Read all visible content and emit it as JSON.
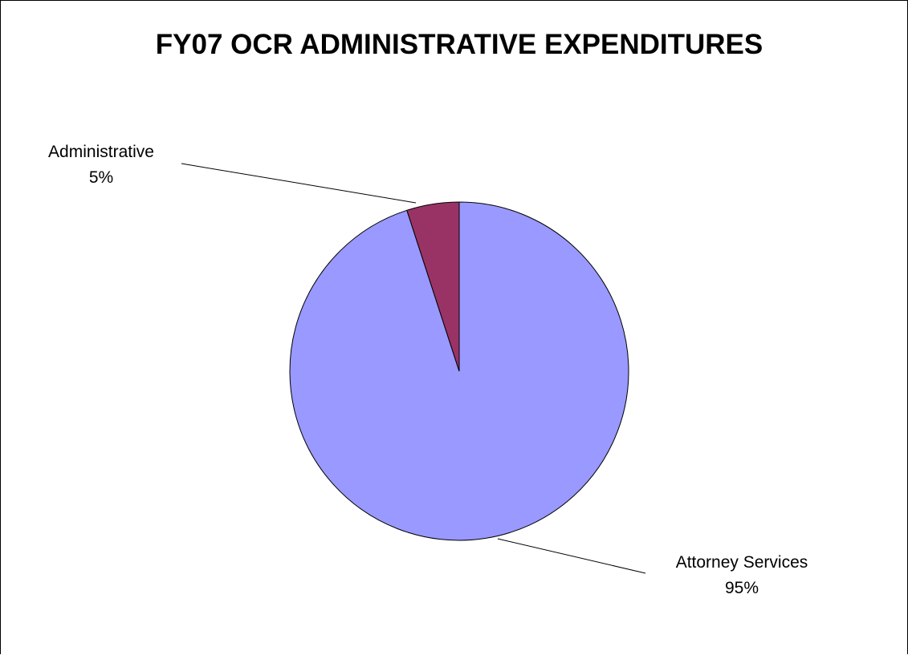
{
  "chart_data": {
    "type": "pie",
    "title": "FY07 OCR ADMINISTRATIVE EXPENDITURES",
    "slices": [
      {
        "label": "Attorney Services",
        "value": 95,
        "percent_label": "95%",
        "color": "#9999ff"
      },
      {
        "label": "Administrative",
        "value": 5,
        "percent_label": "5%",
        "color": "#993366"
      }
    ],
    "start_angle_deg": 0,
    "direction": "clockwise",
    "border_color": "#000000",
    "legend": "none"
  }
}
